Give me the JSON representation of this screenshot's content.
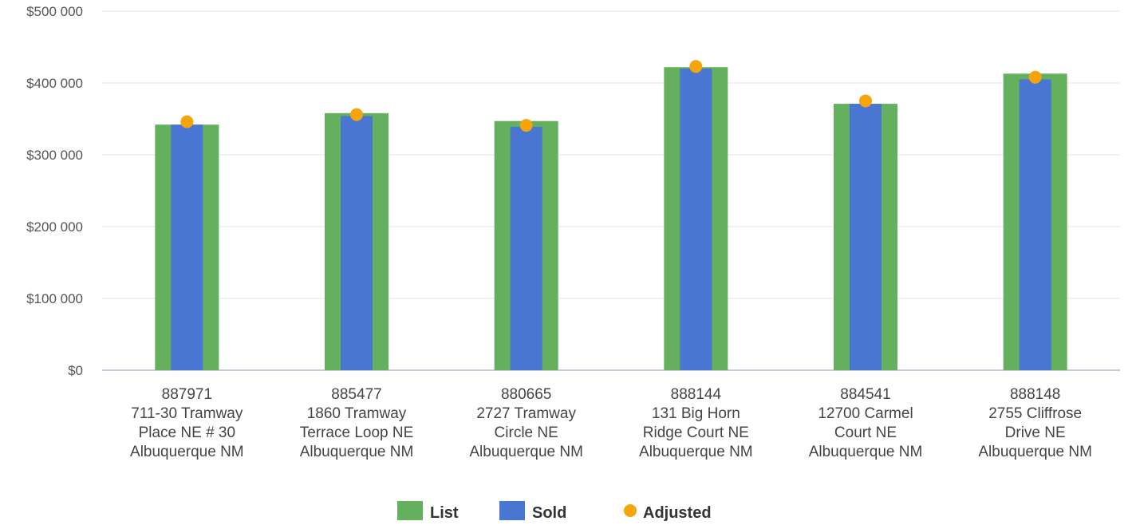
{
  "chart_data": {
    "type": "bar",
    "title": "",
    "xlabel": "",
    "ylabel": "",
    "ylim": [
      0,
      500000
    ],
    "y_ticks": [
      {
        "value": 0,
        "label": "$0"
      },
      {
        "value": 100000,
        "label": "$100 000"
      },
      {
        "value": 200000,
        "label": "$200 000"
      },
      {
        "value": 300000,
        "label": "$300 000"
      },
      {
        "value": 400000,
        "label": "$400 000"
      },
      {
        "value": 500000,
        "label": "$500 000"
      }
    ],
    "grid": true,
    "legend_position": "bottom",
    "categories": [
      {
        "lines": [
          "887971",
          "711-30 Tramway",
          "Place NE # 30",
          "Albuquerque NM"
        ]
      },
      {
        "lines": [
          "885477",
          "1860 Tramway",
          "Terrace Loop NE",
          "Albuquerque NM"
        ]
      },
      {
        "lines": [
          "880665",
          "2727 Tramway",
          "Circle NE",
          "Albuquerque NM"
        ]
      },
      {
        "lines": [
          "888144",
          "131 Big Horn",
          "Ridge Court NE",
          "Albuquerque NM"
        ]
      },
      {
        "lines": [
          "884541",
          "12700 Carmel",
          "Court NE",
          "Albuquerque NM"
        ]
      },
      {
        "lines": [
          "888148",
          "2755 Cliffrose",
          "Drive NE",
          "Albuquerque NM"
        ]
      }
    ],
    "series": [
      {
        "name": "List",
        "kind": "bar",
        "color": "#64b05f",
        "values": [
          342000,
          358000,
          347000,
          422000,
          371000,
          413000
        ]
      },
      {
        "name": "Sold",
        "kind": "bar",
        "color": "#4876d0",
        "values": [
          342000,
          354000,
          339000,
          420000,
          371000,
          405000
        ]
      },
      {
        "name": "Adjusted",
        "kind": "point",
        "color": "#f5a50a",
        "values": [
          346000,
          356000,
          341000,
          423000,
          375000,
          408000
        ]
      }
    ]
  }
}
